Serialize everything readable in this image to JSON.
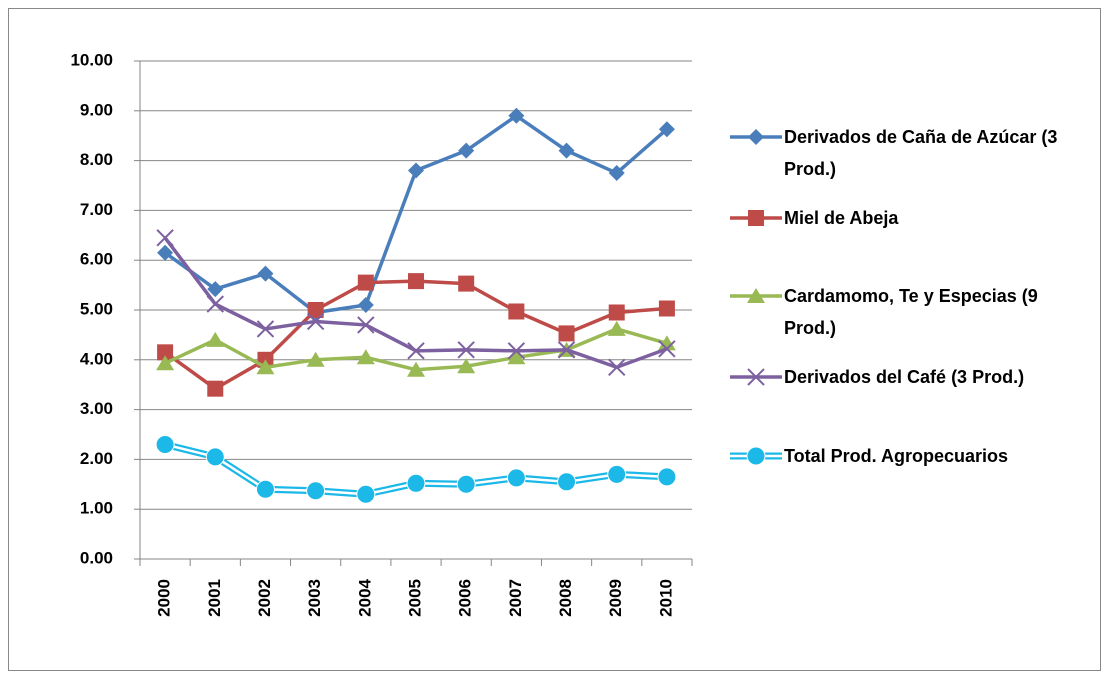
{
  "chart_data": {
    "type": "line",
    "categories": [
      "2000",
      "2001",
      "2002",
      "2003",
      "2004",
      "2005",
      "2006",
      "2007",
      "2008",
      "2009",
      "2010"
    ],
    "series": [
      {
        "name": "Derivados de Caña de Azúcar (3 Prod.)",
        "color": "#4a7ebb",
        "marker": "diamond",
        "values": [
          6.15,
          5.42,
          5.73,
          4.95,
          5.1,
          7.8,
          8.2,
          8.9,
          8.2,
          7.75,
          8.63
        ]
      },
      {
        "name": "Miel de Abeja",
        "color": "#be4b48",
        "marker": "square",
        "values": [
          4.15,
          3.42,
          4.0,
          5.0,
          5.55,
          5.58,
          5.53,
          4.97,
          4.53,
          4.95,
          5.03
        ]
      },
      {
        "name": "Cardamomo, Te y Especias (9 Prod.)",
        "color": "#98b954",
        "marker": "triangle",
        "values": [
          3.93,
          4.4,
          3.85,
          4.0,
          4.05,
          3.8,
          3.87,
          4.05,
          4.2,
          4.62,
          4.33
        ]
      },
      {
        "name": "Derivados del Café (3 Prod.)",
        "color": "#7d60a0",
        "marker": "x",
        "values": [
          6.45,
          5.12,
          4.62,
          4.77,
          4.7,
          4.18,
          4.2,
          4.18,
          4.2,
          3.85,
          4.22
        ]
      },
      {
        "name": "Total Prod. Agropecuarios",
        "color": "#1bb8e8",
        "marker": "circle",
        "values": [
          2.3,
          2.05,
          1.4,
          1.37,
          1.3,
          1.52,
          1.5,
          1.63,
          1.55,
          1.7,
          1.65
        ]
      }
    ],
    "ylim": [
      0,
      10
    ],
    "yticks": [
      {
        "value": 0,
        "label": "0.00"
      },
      {
        "value": 1,
        "label": "1.00"
      },
      {
        "value": 2,
        "label": "2.00"
      },
      {
        "value": 3,
        "label": "3.00"
      },
      {
        "value": 4,
        "label": "4.00"
      },
      {
        "value": 5,
        "label": "5.00"
      },
      {
        "value": 6,
        "label": "6.00"
      },
      {
        "value": 7,
        "label": "7.00"
      },
      {
        "value": 8,
        "label": "8.00"
      },
      {
        "value": 9,
        "label": "9.00"
      },
      {
        "value": 10,
        "label": "10.00"
      }
    ],
    "grid": true,
    "legend": "right"
  }
}
